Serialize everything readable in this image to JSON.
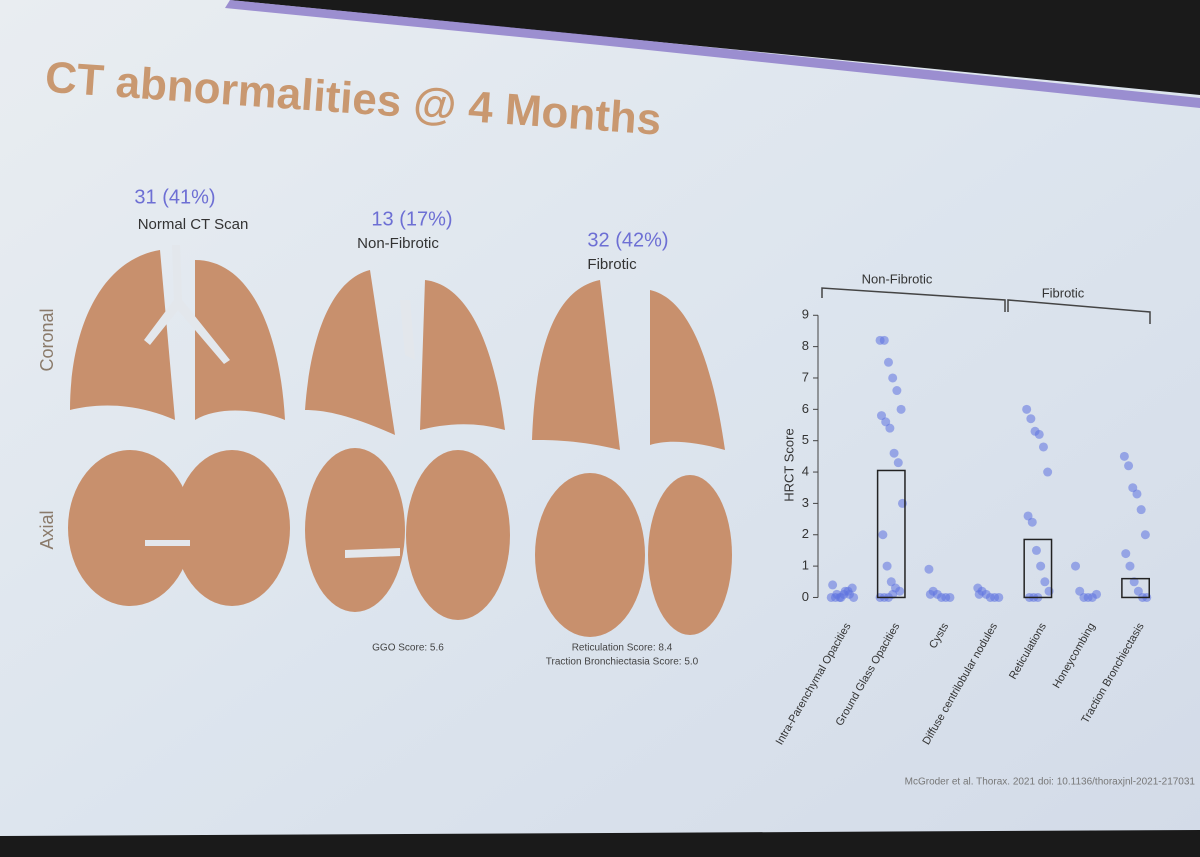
{
  "slide": {
    "title": "CT abnormalities @ 4 Months",
    "row_labels": [
      "Coronal",
      "Axial"
    ],
    "panels": [
      {
        "count": "31 (41%)",
        "label": "Normal CT Scan"
      },
      {
        "count": "13 (17%)",
        "label": "Non-Fibrotic",
        "score": [
          "GGO Score: 5.6"
        ]
      },
      {
        "count": "32 (42%)",
        "label": "Fibrotic",
        "score": [
          "Reticulation Score: 8.4",
          "Traction Bronchiectasia Score: 5.0"
        ]
      }
    ],
    "citation": "McGroder et al. Thorax. 2021 doi: 10.1136/thoraxjnl-2021-217031"
  },
  "chart_data": {
    "type": "bar",
    "groups": [
      "Non-Fibrotic",
      "Fibrotic"
    ],
    "y_label": "HRCT Score",
    "categories": [
      "Intra-Parenchymal Opacities",
      "Ground Glass Opacities",
      "Cysts",
      "Diffuse centrilobular nodules",
      "Reticulations",
      "Honeycombing",
      "Traction Bronchiectasis"
    ],
    "values": [
      0,
      4.05,
      0,
      0,
      1.85,
      0,
      0.6
    ],
    "points": [
      [
        0,
        0,
        0,
        0.1,
        0.2,
        0.3,
        0.4,
        0.1,
        0,
        0.2,
        0.1,
        0
      ],
      [
        8.2,
        8.2,
        7.5,
        7,
        6.6,
        6,
        5.8,
        5.6,
        5.4,
        4.6,
        4.3,
        3,
        2,
        1,
        0.5,
        0.3,
        0.2,
        0,
        0,
        0,
        0.1
      ],
      [
        0.9,
        0.2,
        0.1,
        0,
        0,
        0,
        0.1
      ],
      [
        0.3,
        0.2,
        0.1,
        0,
        0,
        0,
        0.1
      ],
      [
        6,
        5.7,
        5.3,
        5.2,
        4.8,
        4,
        2.6,
        2.4,
        1.5,
        1,
        0.5,
        0.2,
        0,
        0,
        0
      ],
      [
        1,
        0.2,
        0,
        0,
        0,
        0.1
      ],
      [
        4.5,
        4.2,
        3.5,
        3.3,
        2.8,
        2,
        1.4,
        1,
        0.5,
        0.2,
        0,
        0
      ]
    ],
    "bar_color": "#222222",
    "point_color": "#5f73e0",
    "ylim": [
      -0.4,
      9.2
    ],
    "yticks": [
      0,
      1,
      2,
      3,
      4,
      5,
      6,
      7,
      8,
      9
    ]
  }
}
